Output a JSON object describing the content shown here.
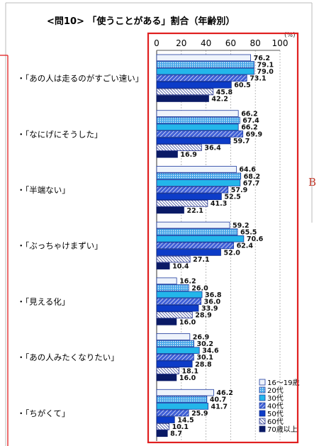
{
  "chart_data": {
    "type": "bar",
    "orientation": "horizontal",
    "title": "<問10> 「使うことがある」割合（年齢別）",
    "unit": "(%)",
    "xlim": [
      0,
      100
    ],
    "ticks": [
      "0",
      "20",
      "40",
      "60",
      "80",
      "100"
    ],
    "categories": [
      "・「あの人は走るのがすごい速い」",
      "・「なにげにそうした」",
      "・「半端ない」",
      "・「ぶっちゃけまずい」",
      "・「見える化」",
      "・「あの人みたくなりたい」",
      "・「ちがくて」"
    ],
    "series": [
      {
        "name": "16～19歳",
        "values": [
          76.2,
          66.2,
          64.6,
          59.2,
          16.2,
          26.9,
          46.2
        ]
      },
      {
        "name": "20代",
        "values": [
          79.1,
          67.4,
          68.2,
          65.5,
          26.0,
          30.2,
          40.7
        ]
      },
      {
        "name": "30代",
        "values": [
          79.0,
          66.2,
          67.7,
          70.6,
          36.8,
          34.6,
          41.7
        ]
      },
      {
        "name": "40代",
        "values": [
          73.1,
          69.9,
          57.9,
          62.4,
          36.0,
          30.1,
          25.9
        ]
      },
      {
        "name": "50代",
        "values": [
          60.5,
          59.7,
          52.5,
          52.0,
          33.9,
          28.8,
          14.5
        ]
      },
      {
        "name": "60代",
        "values": [
          45.8,
          36.4,
          41.3,
          27.1,
          28.9,
          18.1,
          10.1
        ]
      },
      {
        "name": "70歳以上",
        "values": [
          42.2,
          16.9,
          22.1,
          10.4,
          16.0,
          16.0,
          8.7
        ]
      }
    ],
    "legend_position": "bottom-right",
    "grid": true
  },
  "annotation_letter": "B",
  "colors": {
    "highlight_box": "#e02020",
    "grid": "#aaaaaa",
    "series_fill": [
      "#eef3fb",
      "#3aa3e8",
      "#23b6ea",
      "#3f5fd6",
      "#0d3cc8",
      "#1d2c8a",
      "#0a1a66"
    ],
    "series_stroke": [
      "#1d3a9e",
      "#1d3a9e",
      "#1d3a9e",
      "#1d3a9e",
      "#0d2a8a",
      "#1d2c8a",
      "#0a1a66"
    ],
    "series_pattern": [
      "none",
      "dots",
      "none",
      "hatch",
      "none",
      "hatch-dense",
      "none"
    ]
  }
}
